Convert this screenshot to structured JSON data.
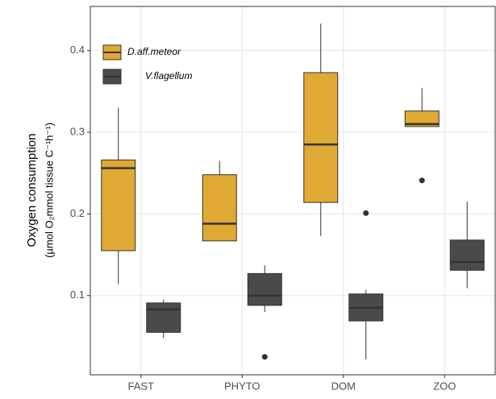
{
  "chart_data": {
    "type": "box",
    "y_label": [
      "Oxygen consumption",
      "(µmol O₂mmol tissue C⁻¹h⁻¹)"
    ],
    "categories": [
      "FAST",
      "PHYTO",
      "DOM",
      "ZOO"
    ],
    "ylim": [
      0.003,
      0.454
    ],
    "yticks": [
      0.1,
      0.2,
      0.3,
      0.4
    ],
    "grid": true,
    "legend": "top-left",
    "series": [
      {
        "name": "D.aff.meteor",
        "color": "#dfa933",
        "min": [
          0.114,
          0.167,
          0.173,
          0.307
        ],
        "q1": [
          0.155,
          0.167,
          0.214,
          0.307
        ],
        "median": [
          0.256,
          0.188,
          0.285,
          0.31
        ],
        "q3": [
          0.266,
          0.248,
          0.373,
          0.326
        ],
        "max": [
          0.33,
          0.265,
          0.433,
          0.354
        ],
        "outliers": [
          [],
          [],
          [],
          [
            0.241
          ]
        ]
      },
      {
        "name": "V.flagellum",
        "color": "#4a4a4a",
        "min": [
          0.048,
          0.08,
          0.022,
          0.109
        ],
        "q1": [
          0.055,
          0.088,
          0.069,
          0.131
        ],
        "median": [
          0.083,
          0.1,
          0.085,
          0.141
        ],
        "q3": [
          0.091,
          0.127,
          0.102,
          0.168
        ],
        "max": [
          0.095,
          0.137,
          0.107,
          0.215
        ],
        "outliers": [
          [],
          [
            0.025
          ],
          [
            0.201
          ],
          []
        ]
      }
    ]
  }
}
